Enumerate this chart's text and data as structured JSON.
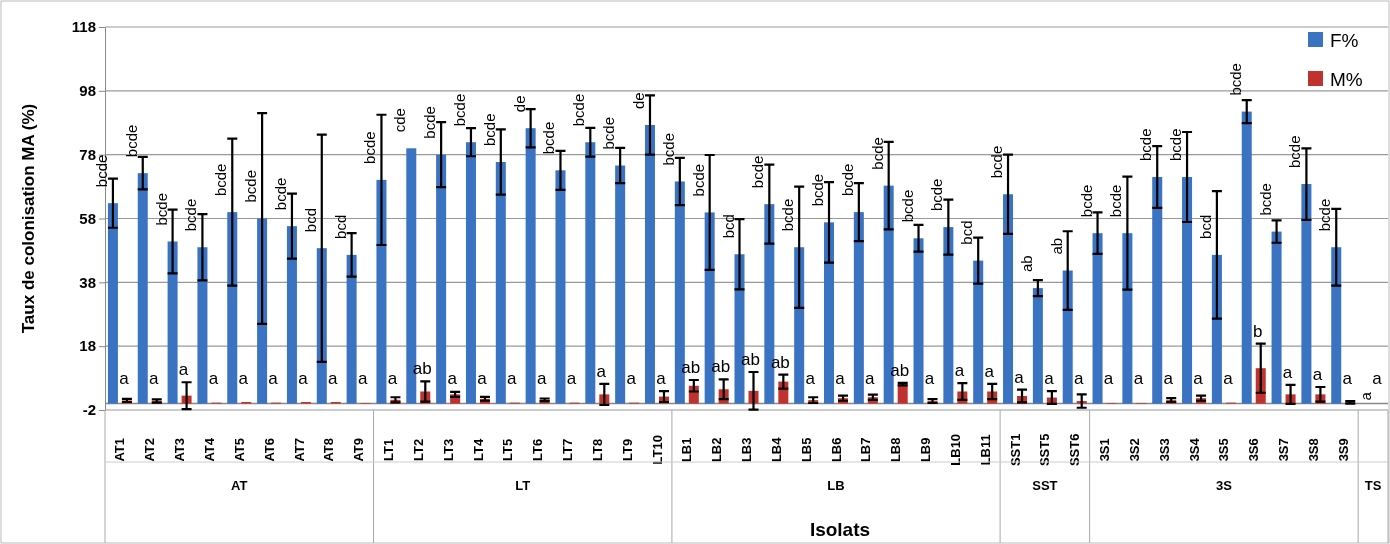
{
  "chart_data": {
    "type": "bar",
    "ylabel": "Taux de colonisation MA (%)",
    "xlabel": "Isolats",
    "categories": [
      "AT1",
      "AT2",
      "AT3",
      "AT4",
      "AT5",
      "AT6",
      "AT7",
      "AT8",
      "AT9",
      "LT1",
      "LT2",
      "LT3",
      "LT4",
      "LT5",
      "LT6",
      "LT7",
      "LT8",
      "LT9",
      "LT10",
      "LB1",
      "LB2",
      "LB3",
      "LB4",
      "LB5",
      "LB6",
      "LB7",
      "LB8",
      "LB9",
      "LB10",
      "LB11",
      "SST1",
      "SST5",
      "SST6",
      "3S1",
      "3S2",
      "3S3",
      "3S4",
      "3S5",
      "3S6",
      "3S7",
      "3S8",
      "3S9",
      null
    ],
    "series": [
      {
        "name": "F%",
        "color": "#3a73c2",
        "values": [
          62.8,
          72.2,
          50.8,
          49.0,
          60.0,
          58.0,
          55.6,
          48.7,
          46.6,
          70.1,
          80.0,
          78.0,
          81.9,
          75.7,
          86.3,
          73.1,
          81.9,
          74.6,
          87.3,
          69.6,
          59.9,
          46.8,
          62.5,
          49.0,
          56.8,
          60.0,
          68.3,
          51.8,
          55.3,
          44.8,
          65.6,
          36.2,
          41.7,
          53.4,
          53.4,
          71.0,
          71.0,
          46.6,
          91.5,
          53.9,
          68.8,
          49.0,
          0
        ],
        "errors": [
          7.7,
          5.1,
          10,
          10.4,
          23,
          33,
          10.2,
          35.6,
          6.8,
          20.4,
          null,
          10.2,
          4.4,
          10.2,
          6,
          6.1,
          4.5,
          5.5,
          9.3,
          7.4,
          18,
          11,
          12.4,
          19,
          12.6,
          9.1,
          13.7,
          4.2,
          8.6,
          7.2,
          12.4,
          2.5,
          12.3,
          6.5,
          17.7,
          9.7,
          14.1,
          20,
          3.6,
          3.5,
          11.2,
          12,
          null
        ],
        "value_labels": [
          "bcde",
          "bcde",
          "bcde",
          "bcde",
          "bcde",
          "bcde",
          "bcde",
          "bcd",
          "bcd",
          "bcde",
          "cde",
          "bcde",
          "bcde",
          "bcde",
          "de",
          "bcde",
          "bcde",
          "bcde",
          "de",
          "bcde",
          "bcde",
          "bcd",
          "bcde",
          "bcde",
          "bcde",
          "bcde",
          "bcde",
          "bcde",
          "bcde",
          "bcd",
          "bcde",
          "ab",
          "ab",
          "bcde",
          "bcde",
          "bcde",
          "bcde",
          "bcd",
          "bcde",
          "bcde",
          "bcde",
          "bcde",
          "a"
        ]
      },
      {
        "name": "M%",
        "color": "#c0322e",
        "values": [
          1,
          0.8,
          2.5,
          0.3,
          0.5,
          0.3,
          0.5,
          0.5,
          0.2,
          1.2,
          3.8,
          2.9,
          1.5,
          0.3,
          1.2,
          0.3,
          2.9,
          0.3,
          2.2,
          5.6,
          4.5,
          4.0,
          6.9,
          1.1,
          1.7,
          2.0,
          6.1,
          0.8,
          3.8,
          3.8,
          2.4,
          1.9,
          0.8,
          0.2,
          0.2,
          1.1,
          1.7,
          0.3,
          11.1,
          2.9,
          2.9,
          0.4,
          0
        ],
        "errors": [
          0.5,
          0.5,
          4.2,
          null,
          null,
          null,
          null,
          null,
          null,
          0.8,
          3.2,
          0.8,
          0.6,
          null,
          0.4,
          null,
          3.3,
          null,
          1.7,
          1.8,
          3.1,
          5.9,
          2.2,
          0.9,
          0.8,
          0.8,
          0.4,
          0.6,
          2.6,
          2.4,
          2,
          2,
          2.1,
          null,
          null,
          0.6,
          0.8,
          null,
          7.7,
          3,
          2.3,
          0.4,
          null
        ],
        "value_labels": [
          "a",
          "a",
          "a",
          "a",
          "a",
          "a",
          "a",
          "a",
          "a",
          "a",
          "ab",
          "a",
          "a",
          "a",
          "a",
          "a",
          "a",
          "a",
          "a",
          "ab",
          "ab",
          "ab",
          "ab",
          "a",
          "a",
          "a",
          "ab",
          "a",
          "a",
          "a",
          "a",
          "a",
          "a",
          "a",
          "a",
          "a",
          "a",
          "a",
          "b",
          "a",
          "a",
          "a",
          "a"
        ]
      }
    ],
    "ylim": [
      -2,
      118
    ],
    "yticks": [
      -2,
      18,
      38,
      58,
      78,
      98,
      118
    ],
    "grid": "y",
    "legend": "top right",
    "annotations": [
      "AT",
      "LT",
      "LB",
      "SST",
      "3S",
      "TS"
    ]
  }
}
